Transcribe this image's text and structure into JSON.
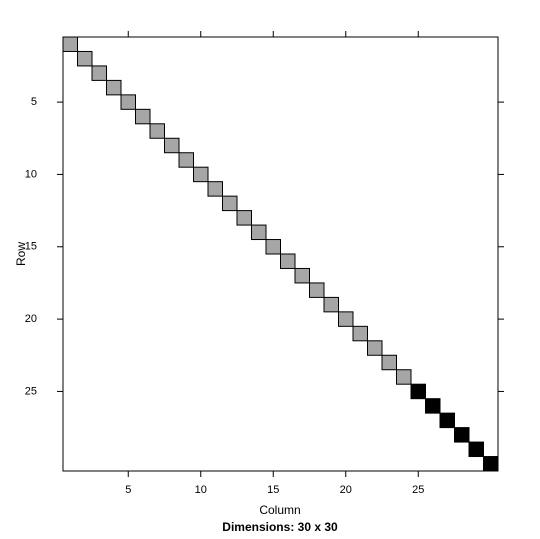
{
  "chart_data": {
    "type": "image",
    "title": "Dimensions: 30 x 30",
    "x_label": "Column",
    "y_label": "Row",
    "xlim": [
      0.5,
      30.5
    ],
    "ylim": [
      30.5,
      0.5
    ],
    "xticks": [
      5,
      10,
      15,
      20,
      25
    ],
    "yticks": [
      5,
      10,
      15,
      20,
      25
    ],
    "series": [
      {
        "color": "#a6a6a6",
        "rows": [
          1,
          2,
          3,
          4,
          5,
          6,
          7,
          8,
          9,
          10,
          11,
          12,
          13,
          14,
          15,
          16,
          17,
          18,
          19,
          20,
          21,
          22,
          23,
          24
        ],
        "cols": [
          1,
          2,
          3,
          4,
          5,
          6,
          7,
          8,
          9,
          10,
          11,
          12,
          13,
          14,
          15,
          16,
          17,
          18,
          19,
          20,
          21,
          22,
          23,
          24
        ]
      },
      {
        "color": "#000000",
        "rows": [
          25,
          26,
          27,
          28,
          29,
          30
        ],
        "cols": [
          25,
          26,
          27,
          28,
          29,
          30
        ]
      }
    ]
  }
}
